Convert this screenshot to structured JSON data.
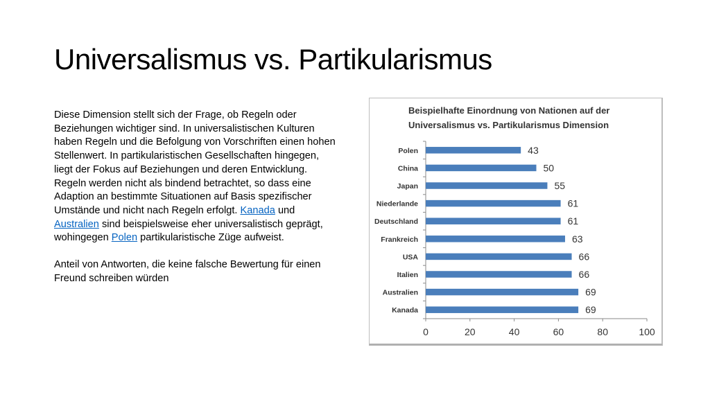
{
  "slide": {
    "title": "Universalismus vs. Partikularismus",
    "paragraph1_text": "Diese Dimension stellt sich der Frage, ob Regeln oder Beziehungen wichtiger sind. In universalistischen Kulturen haben Regeln und die Befolgung von Vorschriften einen hohen Stellenwert. In partikularistischen Gesellschaften hingegen, liegt der Fokus auf Beziehungen und deren Entwicklung. Regeln werden nicht als bindend betrachtet, so dass eine Adaption an bestimmte Situationen auf Basis spezifischer Umstände und nicht nach Regeln erfolgt.",
    "link_kanada": "Kanada",
    "word_und": "und",
    "link_australien": "Australien",
    "paragraph1_mid": "sind beispielsweise eher universalistisch geprägt, wohingegen",
    "link_polen": "Polen",
    "paragraph1_end": "partikularistische Züge aufweist.",
    "paragraph2": "Anteil von Antworten, die keine falsche Bewertung für einen Freund schreiben würden",
    "link_color": "#0563c1"
  },
  "chart_data": {
    "type": "bar",
    "orientation": "horizontal",
    "title_lines": [
      "Beispielhafte Einordnung von Nationen auf der",
      "Universalismus vs. Partikularismus Dimension"
    ],
    "categories": [
      "Polen",
      "China",
      "Japan",
      "Niederlande",
      "Deutschland",
      "Frankreich",
      "USA",
      "Italien",
      "Australien",
      "Kanada"
    ],
    "values": [
      43,
      50,
      55,
      61,
      61,
      63,
      66,
      66,
      69,
      69
    ],
    "xlim": [
      0,
      100
    ],
    "xticks": [
      0,
      20,
      40,
      60,
      80,
      100
    ],
    "bar_color": "#4a7ebb",
    "data_labels": true,
    "grid": false
  }
}
